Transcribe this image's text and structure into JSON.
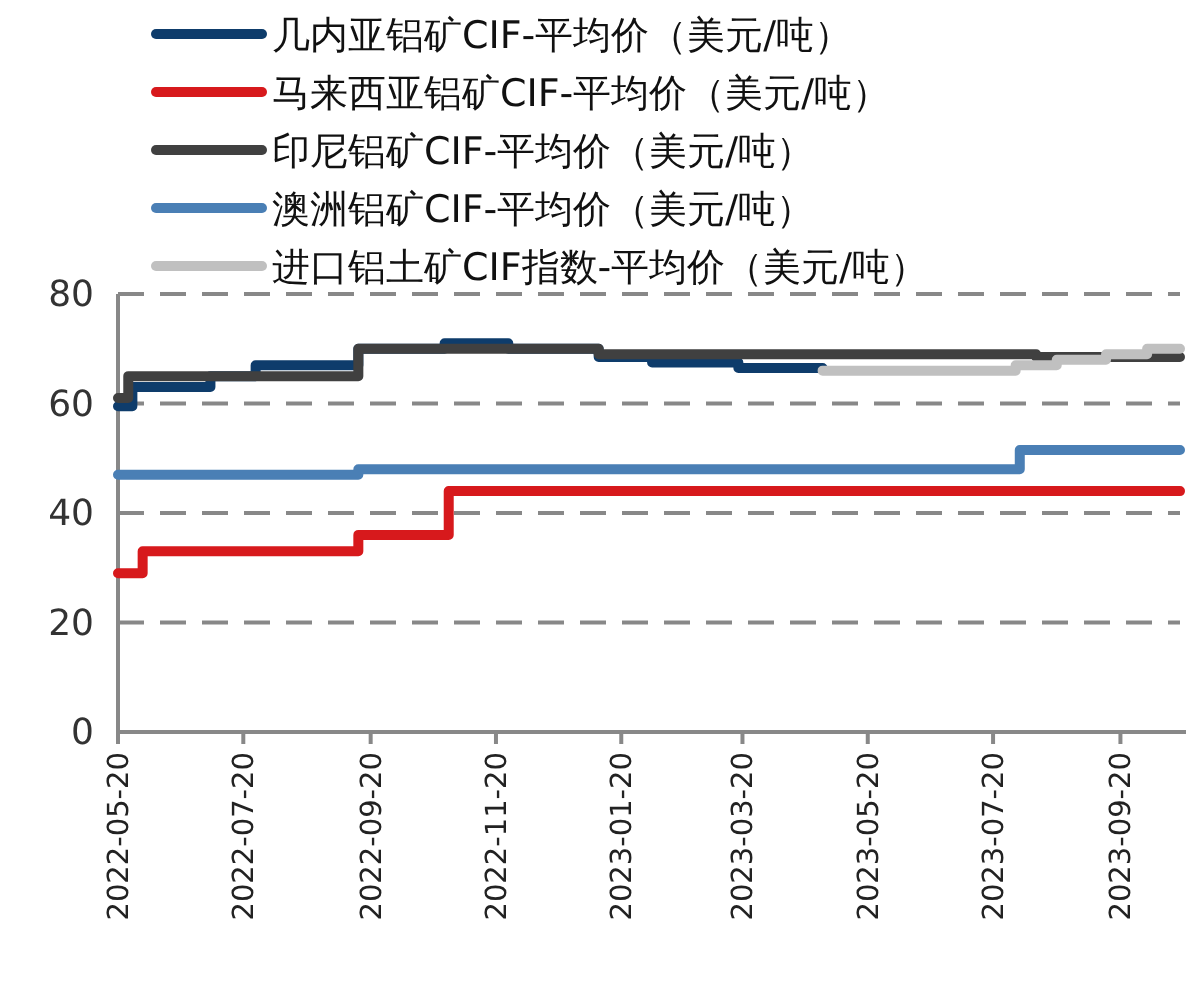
{
  "chart_data": {
    "type": "step",
    "xlim": [
      "2022-05-20",
      "2023-10-19"
    ],
    "xticks": [
      "2022-05-20",
      "2022-07-20",
      "2022-09-20",
      "2022-11-20",
      "2023-01-20",
      "2023-03-20",
      "2023-05-20",
      "2023-07-20",
      "2023-09-20"
    ],
    "ylim": [
      0,
      80
    ],
    "yticks": [
      0,
      20,
      40,
      60,
      80
    ],
    "grid": "y",
    "legend": "top",
    "line_style": "solid",
    "series": [
      {
        "name": "几内亚铝矿CIF-平均价（美元/吨）",
        "color": "#0e3c6b",
        "x": [
          "2022-05-20",
          "2022-05-27",
          "2022-07-04",
          "2022-07-26",
          "2022-09-14",
          "2022-10-26",
          "2022-11-26",
          "2023-01-09",
          "2023-02-04",
          "2023-03-18",
          "2023-04-28"
        ],
        "values": [
          59.5,
          63,
          65,
          67,
          70,
          71,
          70,
          68.5,
          67.5,
          66.5,
          66.5
        ]
      },
      {
        "name": "马来西亚铝矿CIF-平均价（美元/吨）",
        "color": "#d7191c",
        "x": [
          "2022-05-20",
          "2022-06-01",
          "2022-09-14",
          "2022-10-28",
          "2023-10-19"
        ],
        "values": [
          29,
          33,
          36,
          44,
          44
        ]
      },
      {
        "name": "印尼铝矿CIF-平均价（美元/吨）",
        "color": "#404040",
        "x": [
          "2022-05-20",
          "2022-05-25",
          "2022-09-14",
          "2023-01-09",
          "2023-08-10",
          "2023-10-19"
        ],
        "values": [
          61,
          65,
          70,
          69,
          68.5,
          68.5
        ]
      },
      {
        "name": "澳洲铝矿CIF-平均价（美元/吨）",
        "color": "#4a7fb5",
        "x": [
          "2022-05-20",
          "2022-09-14",
          "2023-08-02",
          "2023-10-19"
        ],
        "values": [
          47,
          48,
          51.5,
          51.5
        ]
      },
      {
        "name": "进口铝土矿CIF指数-平均价（美元/吨）",
        "color": "#c0c0c0",
        "x": [
          "2023-04-28",
          "2023-07-31",
          "2023-08-20",
          "2023-09-13",
          "2023-10-03",
          "2023-10-19"
        ],
        "values": [
          66,
          67,
          68,
          69,
          70,
          70
        ]
      }
    ]
  }
}
